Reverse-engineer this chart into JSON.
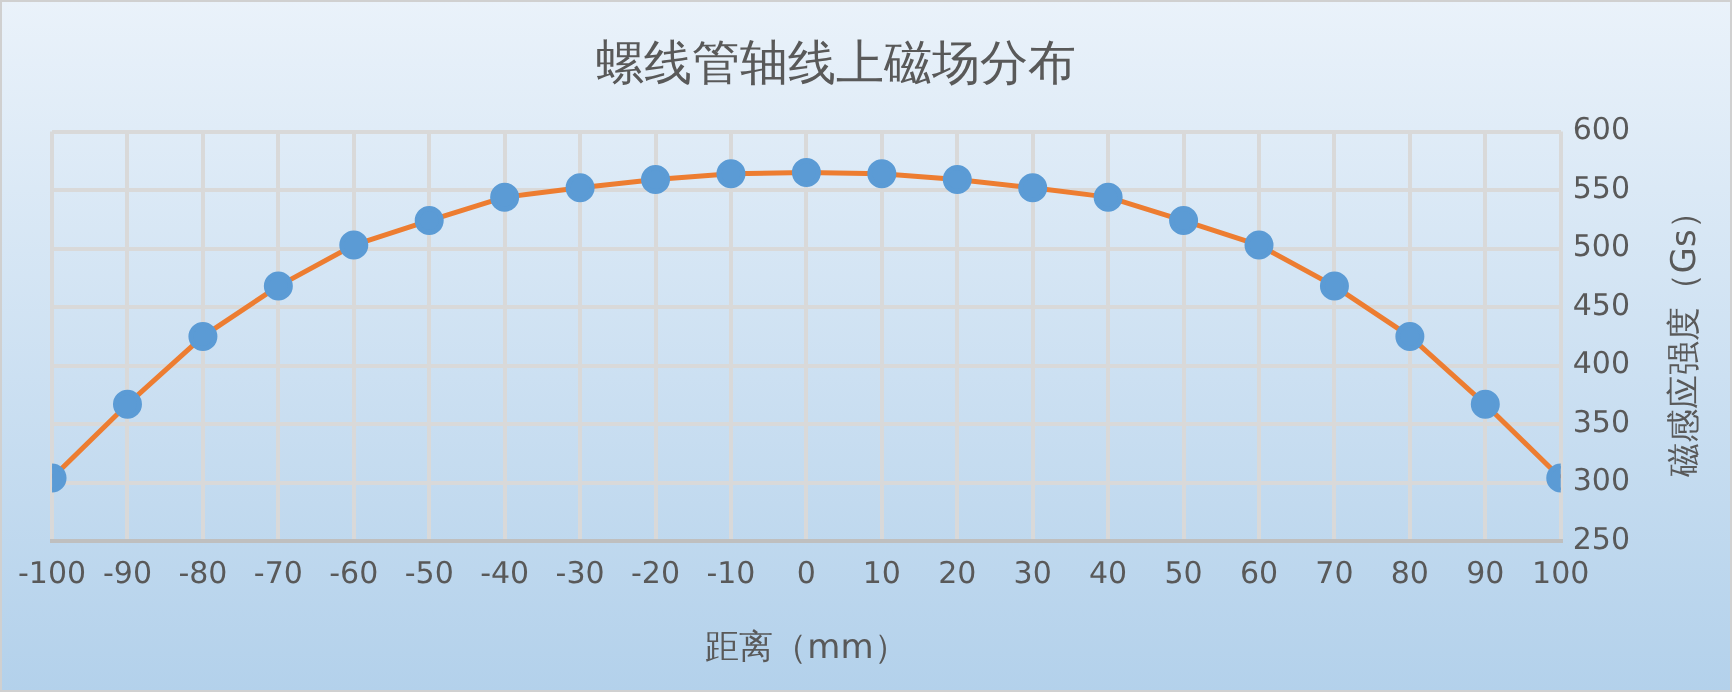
{
  "chart_data": {
    "type": "line",
    "title": "螺线管轴线上磁场分布",
    "xlabel": "距离（mm）",
    "ylabel": "磁感应强度（Gs）",
    "x": [
      -100,
      -90,
      -80,
      -70,
      -60,
      -50,
      -40,
      -30,
      -20,
      -10,
      0,
      10,
      20,
      30,
      40,
      50,
      60,
      70,
      80,
      90,
      100
    ],
    "series": [
      {
        "color": "#ed7d31",
        "colors": [
          "#5b9bd5",
          "#5b9bd5",
          "#5b9bd5",
          "#5b9bd5",
          "#5b9bd5",
          "#5b9bd5",
          "#5b9bd5",
          "#5b9bd5",
          "#5b9bd5",
          "#5b9bd5",
          "#5b9bd5",
          "#5b9bd5",
          "#5b9bd5",
          "#5b9bd5",
          "#5b9bd5",
          "#5b9bd5",
          "#5b9bd5",
          "#5b9bd5",
          "#5b9bd5",
          "#5b9bd5",
          "#5b9bd5"
        ],
        "values": [
          304,
          367,
          425,
          468,
          503,
          524,
          544,
          552,
          559,
          564,
          565,
          564,
          559,
          552,
          544,
          524,
          503,
          468,
          425,
          367,
          304
        ]
      }
    ],
    "xlim": [
      -100,
      100
    ],
    "xticks": [
      -100,
      -90,
      -80,
      -70,
      -60,
      -50,
      -40,
      -30,
      -20,
      -10,
      0,
      10,
      20,
      30,
      40,
      50,
      60,
      70,
      80,
      90,
      100
    ],
    "ylim": [
      250,
      600
    ],
    "yticks": [
      250,
      300,
      350,
      400,
      450,
      500,
      550,
      600
    ],
    "grid": true,
    "legend": false,
    "marker": "circle",
    "line_style": "solid"
  }
}
